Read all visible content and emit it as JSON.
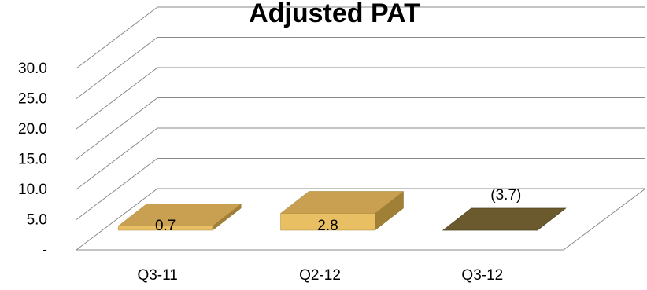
{
  "chart_data": {
    "type": "bar",
    "title": "Adjusted PAT",
    "categories": [
      "Q3-11",
      "Q2-12",
      "Q3-12"
    ],
    "values": [
      0.7,
      2.8,
      -3.7
    ],
    "data_labels": [
      "0.7",
      "2.8",
      "(3.7)"
    ],
    "y_ticks": [
      "-",
      "5.0",
      "10.0",
      "15.0",
      "20.0",
      "25.0",
      "30.0"
    ],
    "ylim": [
      0,
      30
    ],
    "grid": true,
    "legend": "none",
    "colors": {
      "positive_front": "#e8bf63",
      "positive_top": "#c9a051",
      "positive_side": "#a07f37",
      "negative_top": "#6b5a2e",
      "gridline": "#8a8a8a"
    }
  }
}
